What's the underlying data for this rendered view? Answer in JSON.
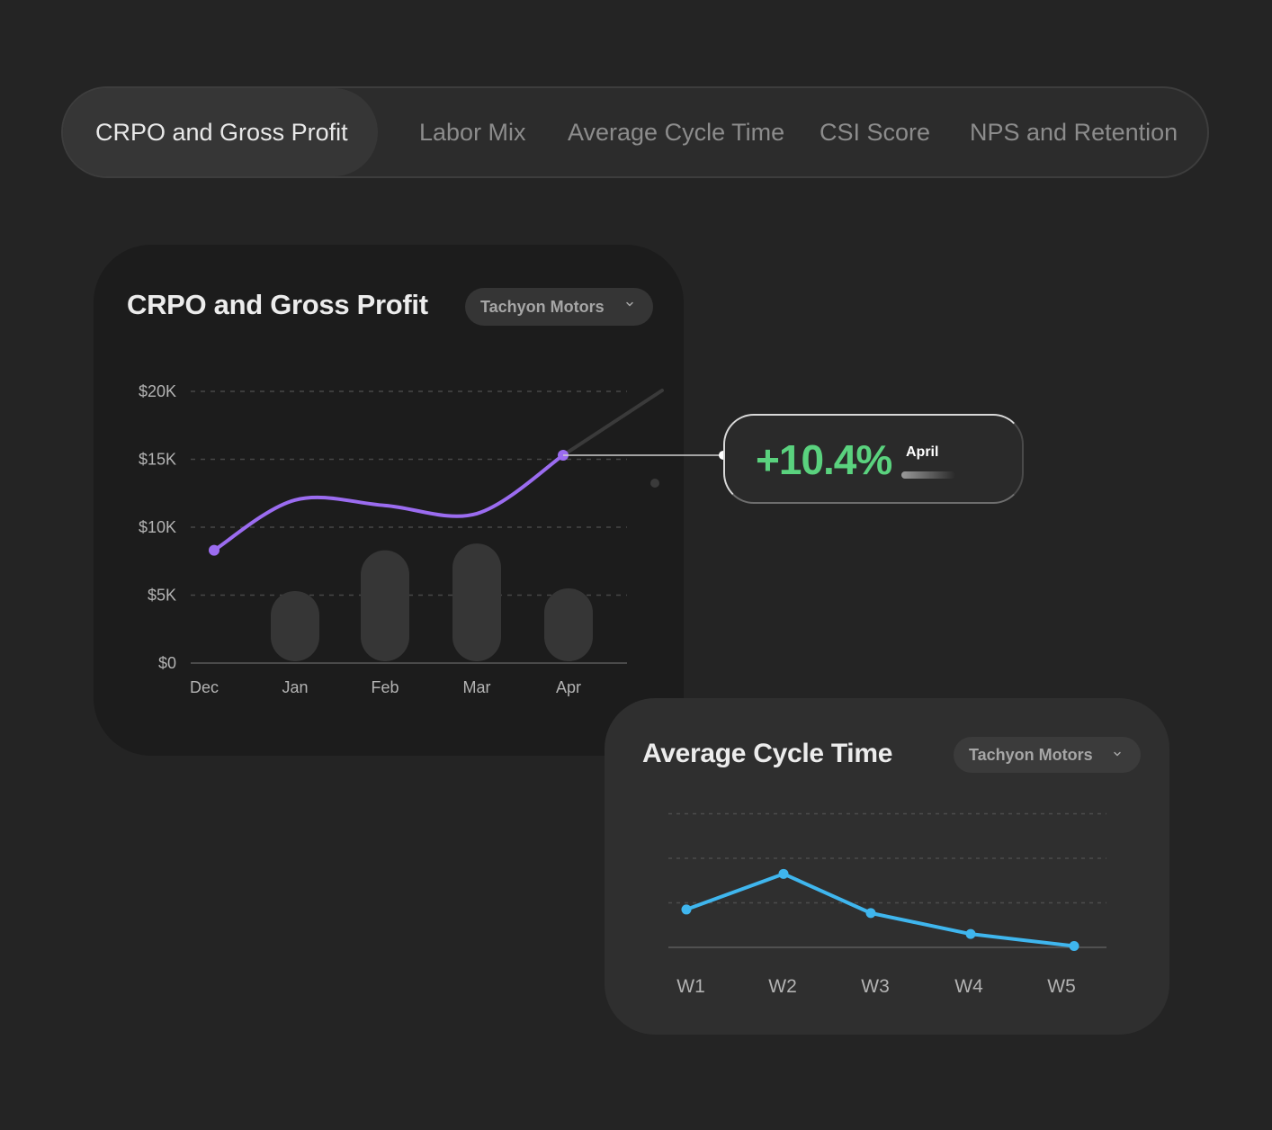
{
  "tabs": [
    {
      "label": "CRPO and Gross Profit",
      "active": true
    },
    {
      "label": "Labor Mix",
      "active": false
    },
    {
      "label": "Average Cycle Time",
      "active": false
    },
    {
      "label": "CSI Score",
      "active": false
    },
    {
      "label": "NPS and Retention",
      "active": false
    }
  ],
  "crpo_card": {
    "title": "CRPO and Gross Profit",
    "dropdown": "Tachyon Motors"
  },
  "callout": {
    "value": "+10.4%",
    "month": "April"
  },
  "cycle_card": {
    "title": "Average Cycle Time",
    "dropdown": "Tachyon Motors"
  },
  "colors": {
    "line": "#9b6cf0",
    "bars": "#363636",
    "positive": "#5ad27e",
    "cycle_line": "#3fb6ee"
  },
  "chart_data": [
    {
      "type": "bar",
      "title": "CRPO and Gross Profit",
      "categories": [
        "Dec",
        "Jan",
        "Feb",
        "Mar",
        "Apr"
      ],
      "y_ticks": [
        "$0",
        "$5K",
        "$10K",
        "$15K",
        "$20K"
      ],
      "ylim": [
        0,
        20000
      ],
      "grid": true,
      "series": [
        {
          "kind": "bar",
          "values": [
            null,
            5300,
            8300,
            8800,
            5500
          ]
        },
        {
          "kind": "line",
          "values": [
            8300,
            12000,
            11600,
            11000,
            15300
          ]
        }
      ]
    },
    {
      "type": "line",
      "title": "Average Cycle Time",
      "categories": [
        "W1",
        "W2",
        "W3",
        "W4",
        "W5"
      ],
      "grid": true,
      "ylim": [
        0,
        3
      ],
      "series": [
        {
          "values": [
            0.85,
            1.65,
            0.77,
            0.3,
            0.03
          ]
        }
      ]
    }
  ]
}
